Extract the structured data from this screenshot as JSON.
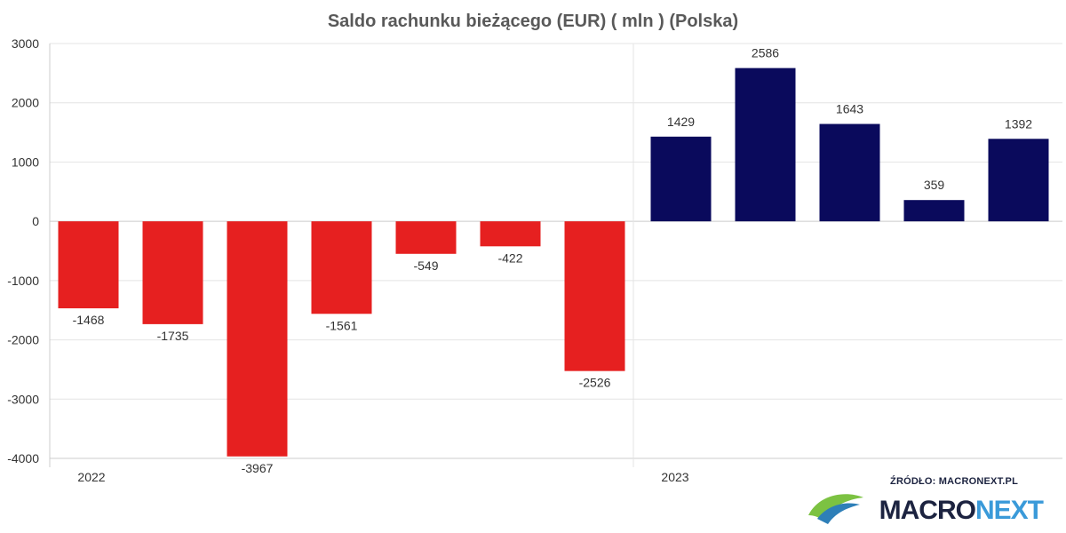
{
  "chart_data": {
    "type": "bar",
    "title": "Saldo rachunku bieżącego (EUR) ( mln ) (Polska)",
    "xlabel": "",
    "ylabel": "",
    "ylim": [
      -4000,
      3000
    ],
    "yticks": [
      "3000",
      "2000",
      "1000",
      "0",
      "-1000",
      "-2000",
      "-3000",
      "-4000"
    ],
    "group_labels": [
      "2022",
      "2023"
    ],
    "values": [
      -1468,
      -1735,
      -3967,
      -1561,
      -549,
      -422,
      -2526,
      1429,
      2586,
      1643,
      359,
      1392
    ],
    "data_labels": [
      "-1468",
      "-1735",
      "-3967",
      "-1561",
      "-549",
      "-422",
      "-2526",
      "1429",
      "2586",
      "1643",
      "359",
      "1392"
    ],
    "grid": true,
    "colors": {
      "negative": "#e62020",
      "positive": "#0a0a5c"
    }
  },
  "branding": {
    "source_label": "ŹRÓDŁO: MACRONEXT.PL",
    "brand_part1": "MACRO",
    "brand_part2": "NEXT"
  }
}
